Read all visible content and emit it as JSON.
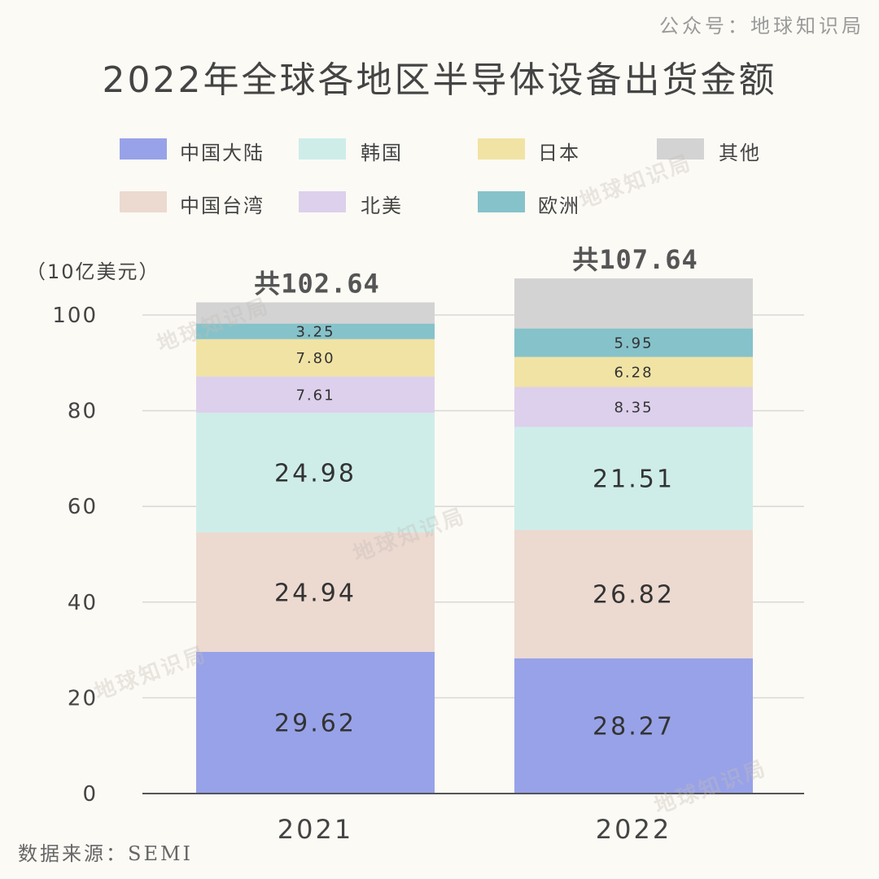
{
  "account_label": "公众号：地球知识局",
  "watermark": "地球知识局",
  "source_text": "数据来源：SEMI",
  "chart_data": {
    "type": "bar",
    "stacked": true,
    "title": "2022年全球各地区半导体设备出货金额",
    "ylabel": "（10亿美元）",
    "ylim": [
      0,
      100
    ],
    "yticks": [
      "0",
      "20",
      "40",
      "60",
      "80",
      "100"
    ],
    "categories": [
      "2021",
      "2022"
    ],
    "totals": [
      102.64,
      107.64
    ],
    "total_labels": [
      "共102.64",
      "共107.64"
    ],
    "series": [
      {
        "name": "中国大陆",
        "color": "#98a2e8",
        "values": [
          29.62,
          28.27
        ],
        "labels": [
          "29.62",
          "28.27"
        ]
      },
      {
        "name": "中国台湾",
        "color": "#ecd9d0",
        "values": [
          24.94,
          26.82
        ],
        "labels": [
          "24.94",
          "26.82"
        ]
      },
      {
        "name": "韩国",
        "color": "#ceede9",
        "values": [
          24.98,
          21.51
        ],
        "labels": [
          "24.98",
          "21.51"
        ]
      },
      {
        "name": "北美",
        "color": "#ddd0ec",
        "values": [
          7.61,
          8.35
        ],
        "labels": [
          "7.61",
          "8.35"
        ]
      },
      {
        "name": "日本",
        "color": "#f1e3a4",
        "values": [
          7.8,
          6.28
        ],
        "labels": [
          "7.80",
          "6.28"
        ]
      },
      {
        "name": "欧洲",
        "color": "#86c2ca",
        "values": [
          3.25,
          5.95
        ],
        "labels": [
          "3.25",
          "5.95"
        ]
      },
      {
        "name": "其他",
        "color": "#d3d3d3",
        "values": [
          4.44,
          10.46
        ],
        "labels": [
          "",
          ""
        ]
      }
    ]
  }
}
